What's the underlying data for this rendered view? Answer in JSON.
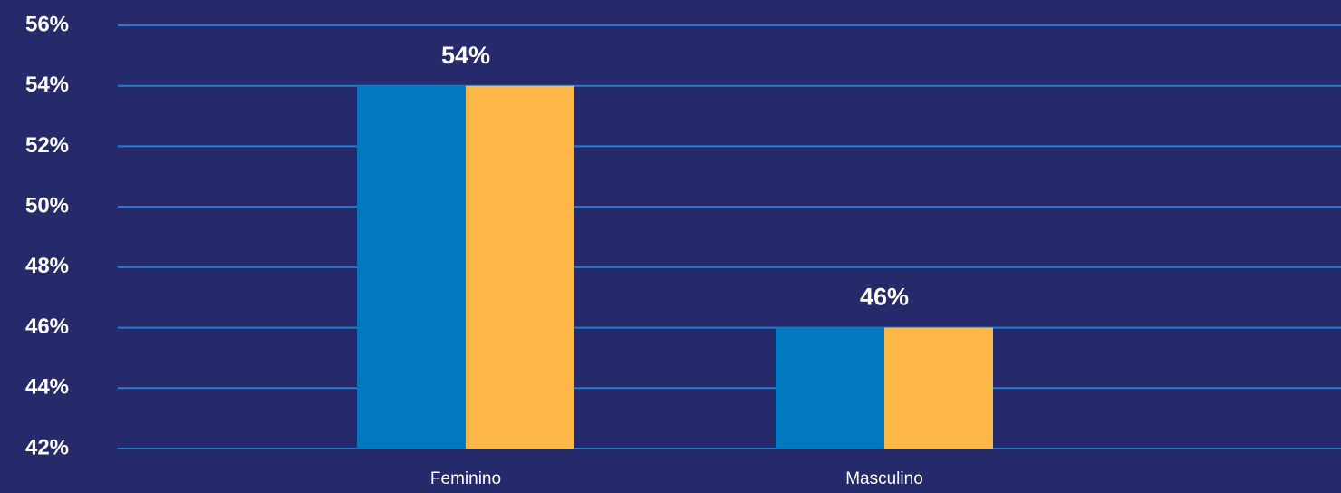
{
  "chart_data": {
    "type": "bar",
    "categories": [
      "Feminino",
      "Masculino"
    ],
    "series": [
      {
        "color": "#0079c1",
        "values": [
          54,
          46
        ],
        "value_labels": [
          "54%",
          "46%"
        ]
      },
      {
        "color": "#fdb747",
        "values": [
          54,
          46
        ]
      }
    ],
    "ylim": [
      42,
      56
    ],
    "yticks": [
      {
        "value": 42,
        "label": "42%"
      },
      {
        "value": 44,
        "label": "44%"
      },
      {
        "value": 46,
        "label": "46%"
      },
      {
        "value": 48,
        "label": "48%"
      },
      {
        "value": 50,
        "label": "50%"
      },
      {
        "value": 52,
        "label": "52%"
      },
      {
        "value": 54,
        "label": "54%"
      },
      {
        "value": 56,
        "label": "56%"
      }
    ],
    "grid": true
  }
}
